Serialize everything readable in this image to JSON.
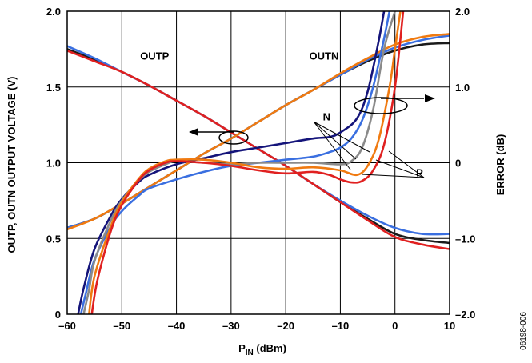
{
  "chart_data": {
    "type": "line",
    "xlabel_main": "P",
    "xlabel_sub": "IN",
    "xlabel_rest": " (dBm)",
    "ylabel_left": "OUTP, OUTN OUTPUT VOLTAGE (V)",
    "ylabel_right": "ERROR (dB)",
    "xlim": [
      -60,
      10
    ],
    "ylim_left": [
      0,
      2.0
    ],
    "ylim_right": [
      -2.0,
      2.0
    ],
    "x_ticks": [
      -60,
      -50,
      -40,
      -30,
      -20,
      -10,
      0,
      10
    ],
    "x_tick_labels": [
      "–60",
      "–50",
      "–40",
      "–30",
      "–20",
      "–10",
      "0",
      "10"
    ],
    "y_left_ticks": [
      0,
      0.5,
      1.0,
      1.5,
      2.0
    ],
    "y_left_tick_labels": [
      "0",
      "0.5",
      "1.0",
      "1.5",
      "2.0"
    ],
    "y_right_ticks": [
      -2.0,
      -1.0,
      0,
      1.0,
      2.0
    ],
    "y_right_tick_labels": [
      "–2.0",
      "–1.0",
      "0",
      "1.0",
      "2.0"
    ],
    "grid": true,
    "annotations": [
      {
        "text": "OUTP",
        "x": -44,
        "y": 1.68
      },
      {
        "text": "OUTN",
        "x": -13,
        "y": 1.68
      },
      {
        "text": "N",
        "x": -12.5,
        "y": 1.28
      },
      {
        "text": "P",
        "x": 4.5,
        "y": 0.91
      }
    ],
    "figure_id": "06198-006",
    "series": [
      {
        "axis": "left",
        "color": "#1a1a1a",
        "x": [
          -60,
          -55,
          -50,
          -45,
          -40,
          -35,
          -30,
          -25,
          -20,
          -15,
          -10,
          -5,
          0,
          5,
          10
        ],
        "y": [
          1.75,
          1.68,
          1.6,
          1.51,
          1.41,
          1.31,
          1.2,
          1.09,
          0.98,
          0.86,
          0.74,
          0.63,
          0.53,
          0.49,
          0.47
        ]
      },
      {
        "axis": "left",
        "color": "#3a6fe0",
        "x": [
          -60,
          -55,
          -50,
          -45,
          -40,
          -35,
          -30,
          -25,
          -20,
          -15,
          -10,
          -5,
          0,
          5,
          10
        ],
        "y": [
          1.77,
          1.69,
          1.6,
          1.51,
          1.41,
          1.31,
          1.2,
          1.09,
          0.98,
          0.86,
          0.75,
          0.65,
          0.57,
          0.53,
          0.53
        ]
      },
      {
        "axis": "left",
        "color": "#e02020",
        "x": [
          -60,
          -55,
          -50,
          -45,
          -40,
          -35,
          -30,
          -25,
          -20,
          -15,
          -10,
          -5,
          0,
          5,
          10
        ],
        "y": [
          1.74,
          1.67,
          1.6,
          1.51,
          1.41,
          1.31,
          1.2,
          1.09,
          0.98,
          0.86,
          0.74,
          0.62,
          0.51,
          0.46,
          0.43
        ]
      },
      {
        "axis": "left",
        "color": "#1a1a1a",
        "x": [
          -60,
          -55,
          -50,
          -45,
          -40,
          -35,
          -30,
          -25,
          -20,
          -15,
          -10,
          -5,
          0,
          5,
          10
        ],
        "y": [
          0.57,
          0.63,
          0.73,
          0.84,
          0.95,
          1.06,
          1.16,
          1.27,
          1.38,
          1.48,
          1.58,
          1.67,
          1.74,
          1.78,
          1.79
        ]
      },
      {
        "axis": "left",
        "color": "#3a6fe0",
        "x": [
          -60,
          -55,
          -50,
          -45,
          -40,
          -35,
          -30,
          -25,
          -20,
          -15,
          -10,
          -5,
          0,
          5,
          10
        ],
        "y": [
          0.57,
          0.63,
          0.73,
          0.84,
          0.95,
          1.06,
          1.16,
          1.27,
          1.38,
          1.48,
          1.58,
          1.68,
          1.76,
          1.81,
          1.84
        ]
      },
      {
        "axis": "left",
        "color": "#f07a10",
        "x": [
          -60,
          -55,
          -50,
          -45,
          -40,
          -35,
          -30,
          -25,
          -20,
          -15,
          -10,
          -5,
          0,
          5,
          10
        ],
        "y": [
          0.56,
          0.63,
          0.73,
          0.84,
          0.95,
          1.06,
          1.16,
          1.27,
          1.38,
          1.48,
          1.59,
          1.69,
          1.78,
          1.83,
          1.85
        ]
      },
      {
        "axis": "left",
        "color": "#14147a",
        "x": [
          -58,
          -57,
          -55,
          -52,
          -50,
          -47,
          -45,
          -40,
          -35,
          -30,
          -25,
          -20,
          -15,
          -12,
          -10,
          -7,
          -5,
          -3,
          -2
        ],
        "y": [
          0.0,
          0.17,
          0.43,
          0.65,
          0.76,
          0.87,
          0.92,
          0.99,
          1.03,
          1.07,
          1.1,
          1.13,
          1.16,
          1.17,
          1.2,
          1.29,
          1.47,
          1.8,
          2.0
        ]
      },
      {
        "axis": "left",
        "color": "#3a6fe0",
        "x": [
          -57.5,
          -56.5,
          -55,
          -52,
          -50,
          -47,
          -45,
          -40,
          -35,
          -30,
          -25,
          -20,
          -15,
          -12,
          -10,
          -8,
          -6,
          -4,
          -2,
          -1
        ],
        "y": [
          0.0,
          0.15,
          0.36,
          0.58,
          0.68,
          0.78,
          0.83,
          0.89,
          0.94,
          0.98,
          1.0,
          1.02,
          1.04,
          1.07,
          1.1,
          1.16,
          1.28,
          1.5,
          1.82,
          2.0
        ]
      },
      {
        "axis": "left",
        "color": "#8a8a8a",
        "x": [
          -57,
          -56,
          -55,
          -52,
          -50,
          -47,
          -45,
          -42,
          -40,
          -35,
          -30,
          -25,
          -20,
          -15,
          -10,
          -8,
          -6,
          -4,
          -2,
          0
        ],
        "y": [
          0.0,
          0.16,
          0.35,
          0.62,
          0.75,
          0.88,
          0.94,
          0.99,
          1.01,
          1.0,
          0.99,
          1.0,
          1.0,
          1.0,
          0.99,
          1.01,
          1.1,
          1.35,
          1.75,
          2.0
        ]
      },
      {
        "axis": "left",
        "color": "#f07a10",
        "x": [
          -56,
          -55,
          -52,
          -50,
          -47,
          -45,
          -42,
          -40,
          -35,
          -30,
          -25,
          -20,
          -15,
          -10,
          -7,
          -5,
          -3,
          -1,
          0,
          1
        ],
        "y": [
          0.0,
          0.25,
          0.58,
          0.74,
          0.89,
          0.96,
          1.01,
          1.02,
          1.02,
          1.0,
          0.97,
          0.96,
          0.97,
          0.95,
          0.92,
          0.98,
          1.15,
          1.5,
          1.75,
          2.0
        ]
      },
      {
        "axis": "left",
        "color": "#e02020",
        "x": [
          -55.5,
          -54.5,
          -52,
          -50,
          -47,
          -45,
          -42,
          -40,
          -35,
          -30,
          -25,
          -20,
          -15,
          -12,
          -10,
          -8,
          -6,
          -4,
          -2,
          0,
          1.5
        ],
        "y": [
          0.0,
          0.22,
          0.55,
          0.72,
          0.88,
          0.95,
          1.0,
          1.01,
          1.0,
          0.98,
          0.95,
          0.93,
          0.94,
          0.92,
          0.89,
          0.87,
          0.88,
          0.95,
          1.12,
          1.5,
          2.0
        ]
      }
    ]
  }
}
